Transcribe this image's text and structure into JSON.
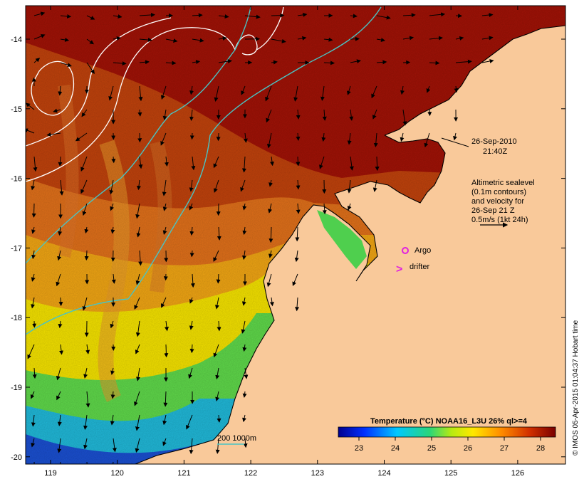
{
  "map": {
    "timestamp_date": "26-Sep-2010",
    "timestamp_time": "21:40Z",
    "altimetry_note": [
      "Altimetric sealevel",
      "(0.1m contours)",
      "and velocity for",
      "26-Sep 21 Z",
      "0.5m/s (1kt 24h)"
    ],
    "argo_label": "Argo",
    "drifter_label": "drifter",
    "drifter_symbol": ">",
    "depth_label": "200  1000m",
    "credit": "© IMOS 05-Apr-2015 01:04:37 Hobart time"
  },
  "axes": {
    "lon_ticks": [
      "119",
      "120",
      "121",
      "122",
      "123",
      "124",
      "125",
      "126"
    ],
    "lat_ticks": [
      "-14",
      "-15",
      "-16",
      "-17",
      "-18",
      "-19",
      "-20"
    ]
  },
  "colorbar": {
    "title": "Temperature (°C) NOAA16_L3U 26% ql>=4",
    "ticks": [
      "23",
      "24",
      "25",
      "26",
      "27",
      "28"
    ]
  },
  "colors": {
    "land": "#f9c99a",
    "hot": "#a01206",
    "warm": "#c7490e",
    "contour": "#ffffff",
    "isobath": "#49c4c4",
    "argo": "#e020e0"
  }
}
